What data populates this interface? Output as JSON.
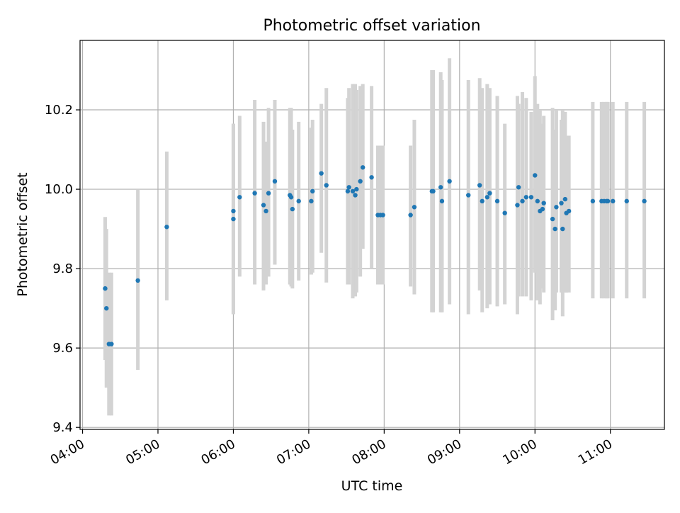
{
  "chart_data": {
    "type": "scatter",
    "title": "Photometric offset variation",
    "xlabel": "UTC time",
    "ylabel": "Photometric offset",
    "x_tick_labels": [
      "04:00",
      "05:00",
      "06:00",
      "07:00",
      "08:00",
      "09:00",
      "10:00",
      "11:00"
    ],
    "y_tick_labels": [
      "9.4",
      "9.6",
      "9.8",
      "10.0",
      "10.2"
    ],
    "y_ticks": [
      9.4,
      9.6,
      9.8,
      10.0,
      10.2
    ],
    "xlim": [
      "03:58",
      "11:43"
    ],
    "ylim": [
      9.395,
      10.375
    ],
    "grid": true,
    "legend": "none",
    "colors": {
      "point": "#1f77b4",
      "errorbar": "#d3d3d3",
      "grid": "#b0b0b0",
      "axes": "#000000"
    },
    "series": [
      {
        "type": "errorbar",
        "x": [
          "04:18",
          "04:19",
          "04:21",
          "04:23",
          "04:44",
          "05:07",
          "06:00",
          "06:00",
          "06:05",
          "06:17",
          "06:24",
          "06:26",
          "06:28",
          "06:33",
          "06:45",
          "06:46",
          "06:47",
          "06:52",
          "07:02",
          "07:03",
          "07:10",
          "07:14",
          "07:31",
          "07:32",
          "07:35",
          "07:37",
          "07:38",
          "07:41",
          "07:43",
          "07:50",
          "07:55",
          "07:57",
          "07:59",
          "08:21",
          "08:24",
          "08:38",
          "08:39",
          "08:45",
          "08:46",
          "08:52",
          "09:07",
          "09:16",
          "09:18",
          "09:22",
          "09:24",
          "09:30",
          "09:36",
          "09:46",
          "09:47",
          "09:50",
          "09:53",
          "09:57",
          "10:00",
          "10:02",
          "10:04",
          "10:06",
          "10:07",
          "10:14",
          "10:16",
          "10:17",
          "10:21",
          "10:22",
          "10:24",
          "10:25",
          "10:27",
          "10:46",
          "10:53",
          "10:55",
          "10:57",
          "10:58",
          "11:02",
          "11:13",
          "11:27"
        ],
        "y": [
          9.75,
          9.7,
          9.61,
          9.61,
          9.77,
          9.905,
          9.945,
          9.925,
          9.98,
          9.99,
          9.96,
          9.945,
          9.99,
          10.02,
          9.985,
          9.98,
          9.95,
          9.97,
          9.97,
          9.995,
          10.04,
          10.01,
          9.995,
          10.005,
          9.995,
          9.985,
          10.0,
          10.02,
          10.055,
          10.03,
          9.935,
          9.935,
          9.935,
          9.935,
          9.955,
          9.995,
          9.995,
          10.005,
          9.97,
          10.02,
          9.985,
          10.01,
          9.97,
          9.98,
          9.99,
          9.97,
          9.94,
          9.96,
          10.005,
          9.97,
          9.98,
          9.98,
          10.035,
          9.97,
          9.945,
          9.95,
          9.965,
          9.925,
          9.9,
          9.955,
          9.965,
          9.9,
          9.975,
          9.94,
          9.945,
          9.97,
          9.97,
          9.97,
          9.97,
          9.97,
          9.97,
          9.97,
          9.97
        ],
        "ylow": [
          9.57,
          9.5,
          9.43,
          9.43,
          9.545,
          9.72,
          9.685,
          9.685,
          9.78,
          9.76,
          9.745,
          9.76,
          9.78,
          9.81,
          9.76,
          9.755,
          9.75,
          9.77,
          9.785,
          9.79,
          9.84,
          9.765,
          9.76,
          9.76,
          9.725,
          9.73,
          9.74,
          9.78,
          9.85,
          9.8,
          9.76,
          9.76,
          9.76,
          9.755,
          9.735,
          9.69,
          9.69,
          9.69,
          9.69,
          9.71,
          9.685,
          9.745,
          9.69,
          9.7,
          9.71,
          9.705,
          9.71,
          9.685,
          9.73,
          9.73,
          9.73,
          9.72,
          9.79,
          9.72,
          9.71,
          9.75,
          9.74,
          9.67,
          9.695,
          9.74,
          9.74,
          9.68,
          9.74,
          9.74,
          9.74,
          9.725,
          9.725,
          9.725,
          9.725,
          9.725,
          9.725,
          9.725,
          9.725
        ],
        "yhigh": [
          9.93,
          9.9,
          9.79,
          9.79,
          10.0,
          10.095,
          10.165,
          10.165,
          10.185,
          10.225,
          10.17,
          10.12,
          10.205,
          10.225,
          10.205,
          10.205,
          10.15,
          10.17,
          10.155,
          10.175,
          10.215,
          10.255,
          10.23,
          10.255,
          10.265,
          10.265,
          10.25,
          10.26,
          10.265,
          10.26,
          10.11,
          10.11,
          10.11,
          10.11,
          10.175,
          10.3,
          10.3,
          10.295,
          10.275,
          10.33,
          10.275,
          10.28,
          10.255,
          10.265,
          10.255,
          10.235,
          10.165,
          10.235,
          10.215,
          10.245,
          10.23,
          10.195,
          10.285,
          10.215,
          10.2,
          10.165,
          10.185,
          10.205,
          10.15,
          10.2,
          10.175,
          10.2,
          10.195,
          10.135,
          10.135,
          10.22,
          10.22,
          10.22,
          10.22,
          10.22,
          10.22,
          10.22,
          10.22
        ]
      }
    ]
  }
}
